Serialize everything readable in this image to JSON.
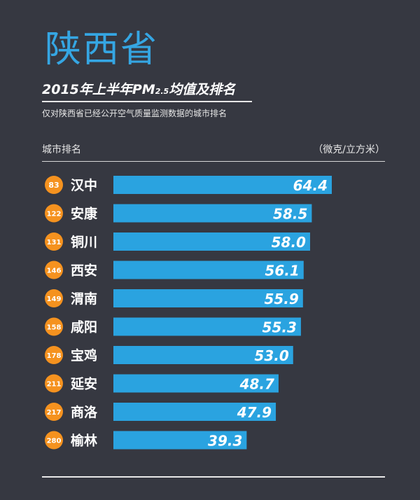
{
  "province": "陕西省",
  "subtitle_main": "2015年上半年PM",
  "subtitle_sub": "2.5",
  "subtitle_tail": "均值及排名",
  "note": "仅对陕西省已经公开空气质量监测数据的城市排名",
  "header_left": "城市排名",
  "header_right": "（微克/立方米）",
  "colors": {
    "background": "#363841",
    "title": "#35a6e3",
    "bar": "#2aa3e0",
    "rank_badge": "#f5921f"
  },
  "chart_data": {
    "type": "bar",
    "orientation": "horizontal",
    "categories": [
      "汉中",
      "安康",
      "铜川",
      "西安",
      "渭南",
      "咸阳",
      "宝鸡",
      "延安",
      "商洛",
      "榆林"
    ],
    "ranks": [
      "83",
      "122",
      "131",
      "146",
      "149",
      "158",
      "178",
      "211",
      "217",
      "280"
    ],
    "values": [
      64.4,
      58.5,
      58.0,
      56.1,
      55.9,
      55.3,
      53.0,
      48.7,
      47.9,
      39.3
    ],
    "value_labels": [
      "64.4",
      "58.5",
      "58.0",
      "56.1",
      "55.9",
      "55.3",
      "53.0",
      "48.7",
      "47.9",
      "39.3"
    ],
    "xlim": [
      0,
      64.4
    ],
    "grid": false
  }
}
